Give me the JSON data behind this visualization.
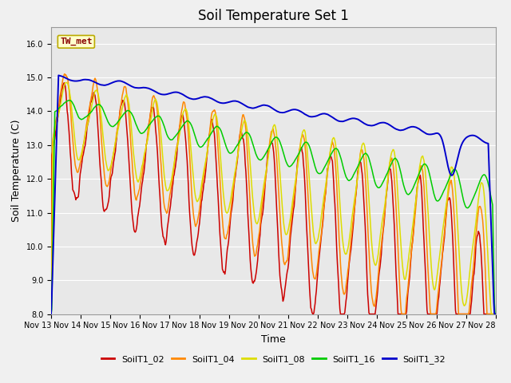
{
  "title": "Soil Temperature Set 1",
  "xlabel": "Time",
  "ylabel": "Soil Temperature (C)",
  "ylim": [
    8.0,
    16.5
  ],
  "yticks": [
    8.0,
    9.0,
    10.0,
    11.0,
    12.0,
    13.0,
    14.0,
    15.0,
    16.0
  ],
  "series_colors": {
    "SoilT1_02": "#cc0000",
    "SoilT1_04": "#ff8800",
    "SoilT1_08": "#dddd00",
    "SoilT1_16": "#00cc00",
    "SoilT1_32": "#0000cc"
  },
  "annotation_text": "TW_met",
  "annotation_color": "#880000",
  "annotation_bg": "#ffffcc",
  "annotation_border": "#bbaa00",
  "plot_bg": "#e8e8e8",
  "grid_color": "#ffffff",
  "title_fontsize": 12,
  "axis_fontsize": 9,
  "tick_fontsize": 7
}
